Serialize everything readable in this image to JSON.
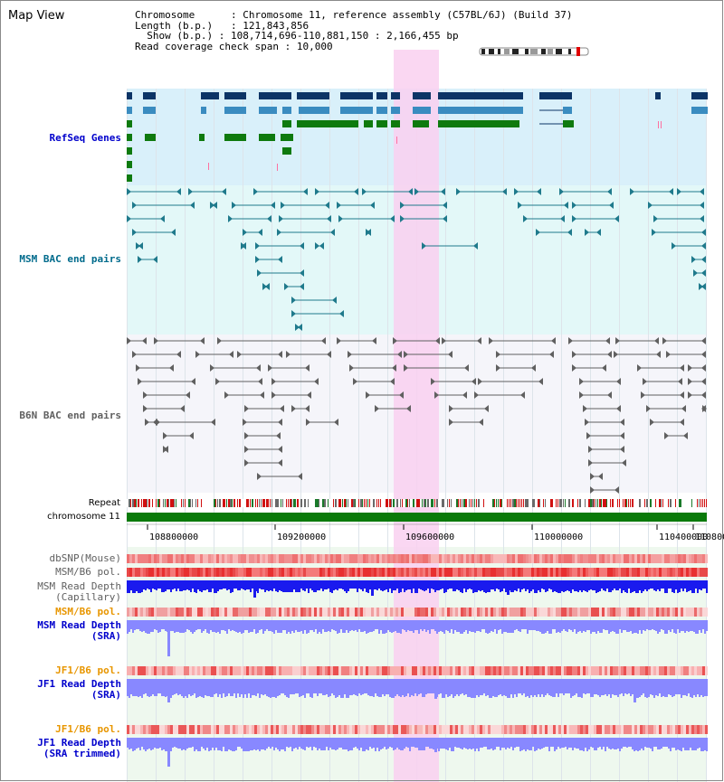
{
  "panel_title": "Map View",
  "info": {
    "chromosome_key": "Chromosome",
    "chromosome_value": "Chromosome 11, reference assembly (C57BL/6J) (Build 37)",
    "length_key": "Length (b.p.)",
    "length_value": "121,843,856",
    "show_key": "Show (b.p.)",
    "show_value": "108,714,696-110,881,150 : 2,166,455 bp",
    "coverage_key": "Read coverage check span",
    "coverage_value": "10,000"
  },
  "tracks": {
    "refseq": "RefSeq Genes",
    "msm_bac": "MSM BAC end pairs",
    "b6n_bac": "B6N BAC end pairs",
    "repeat": "Repeat",
    "chromosome": "chromosome 11",
    "dbsnp": "dbSNP(Mouse)",
    "msm_b6_pol": "MSM/B6 pol.",
    "msm_read_depth_cap_1": "MSM Read Depth",
    "msm_read_depth_cap_2": "(Capillary)",
    "msm_b6_pol_2": "MSM/B6 pol.",
    "msm_read_depth_sra_1": "MSM Read Depth",
    "msm_read_depth_sra_2": "(SRA)",
    "jf1_b6_pol": "JF1/B6 pol.",
    "jf1_read_depth_sra_1": "JF1 Read Depth",
    "jf1_read_depth_sra_2": "(SRA)",
    "jf1_b6_pol_2": "JF1/B6 pol.",
    "jf1_read_depth_trim_1": "JF1 Read Depth",
    "jf1_read_depth_trim_2": "(SRA trimmed)"
  },
  "axis_ticks": [
    "108800000",
    "109200000",
    "109600000",
    "110000000",
    "110400000",
    "1108000"
  ],
  "colors": {
    "refseq_label": "#0000cc",
    "msm_bac_label": "#006b8c",
    "b6n_bac_label": "#606060",
    "orange_label": "#e89600",
    "highlight": "#f9d0f0",
    "refseq_bg": "#d9f0fa",
    "msm_bg": "#e3f8f8",
    "chromosome_bar": "#0a7a0a",
    "gene_navy": "#0c3466",
    "gene_lightblue": "#3a8cc0",
    "gene_green": "#0e7a0e",
    "read_depth_blue": "#1a1aee",
    "read_depth_light": "#8888ff"
  }
}
